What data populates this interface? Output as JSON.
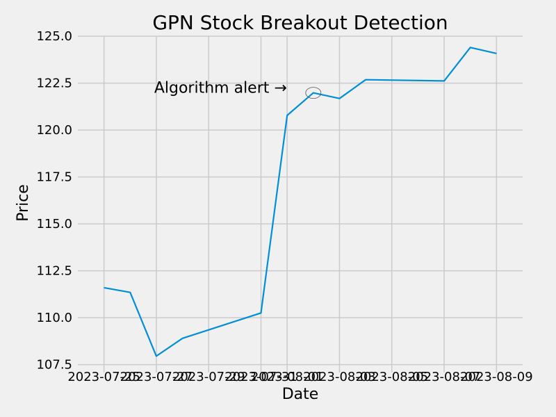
{
  "chart_data": {
    "type": "line",
    "title": "GPN Stock Breakout Detection",
    "xlabel": "Date",
    "ylabel": "Price",
    "ylim": [
      107.3,
      125.3
    ],
    "xlim": [
      "2023-07-24",
      "2023-08-10"
    ],
    "grid": true,
    "x_ticks": [
      "2023-07-25",
      "2023-07-27",
      "2023-07-29",
      "2023-07-31",
      "2023-08-01",
      "2023-08-03",
      "2023-08-05",
      "2023-08-07",
      "2023-08-09"
    ],
    "y_ticks": [
      107.5,
      110.0,
      112.5,
      115.0,
      117.5,
      120.0,
      122.5,
      125.0
    ],
    "y_tick_labels": [
      "107.5",
      "110.0",
      "112.5",
      "115.0",
      "117.5",
      "120.0",
      "122.5",
      "125.0"
    ],
    "series": [
      {
        "color": "#008fd5",
        "points": [
          {
            "x": "2023-07-25",
            "y": 111.6
          },
          {
            "x": "2023-07-26",
            "y": 111.35
          },
          {
            "x": "2023-07-27",
            "y": 107.95
          },
          {
            "x": "2023-07-28",
            "y": 108.9
          },
          {
            "x": "2023-07-31",
            "y": 110.25
          },
          {
            "x": "2023-08-01",
            "y": 120.78
          },
          {
            "x": "2023-08-02",
            "y": 121.98
          },
          {
            "x": "2023-08-03",
            "y": 121.68
          },
          {
            "x": "2023-08-04",
            "y": 122.68
          },
          {
            "x": "2023-08-07",
            "y": 122.62
          },
          {
            "x": "2023-08-08",
            "y": 124.4
          },
          {
            "x": "2023-08-09",
            "y": 124.08
          }
        ]
      }
    ],
    "annotation": {
      "text": "Algorithm alert →",
      "target": {
        "x": "2023-08-02",
        "y": 121.98
      }
    }
  }
}
